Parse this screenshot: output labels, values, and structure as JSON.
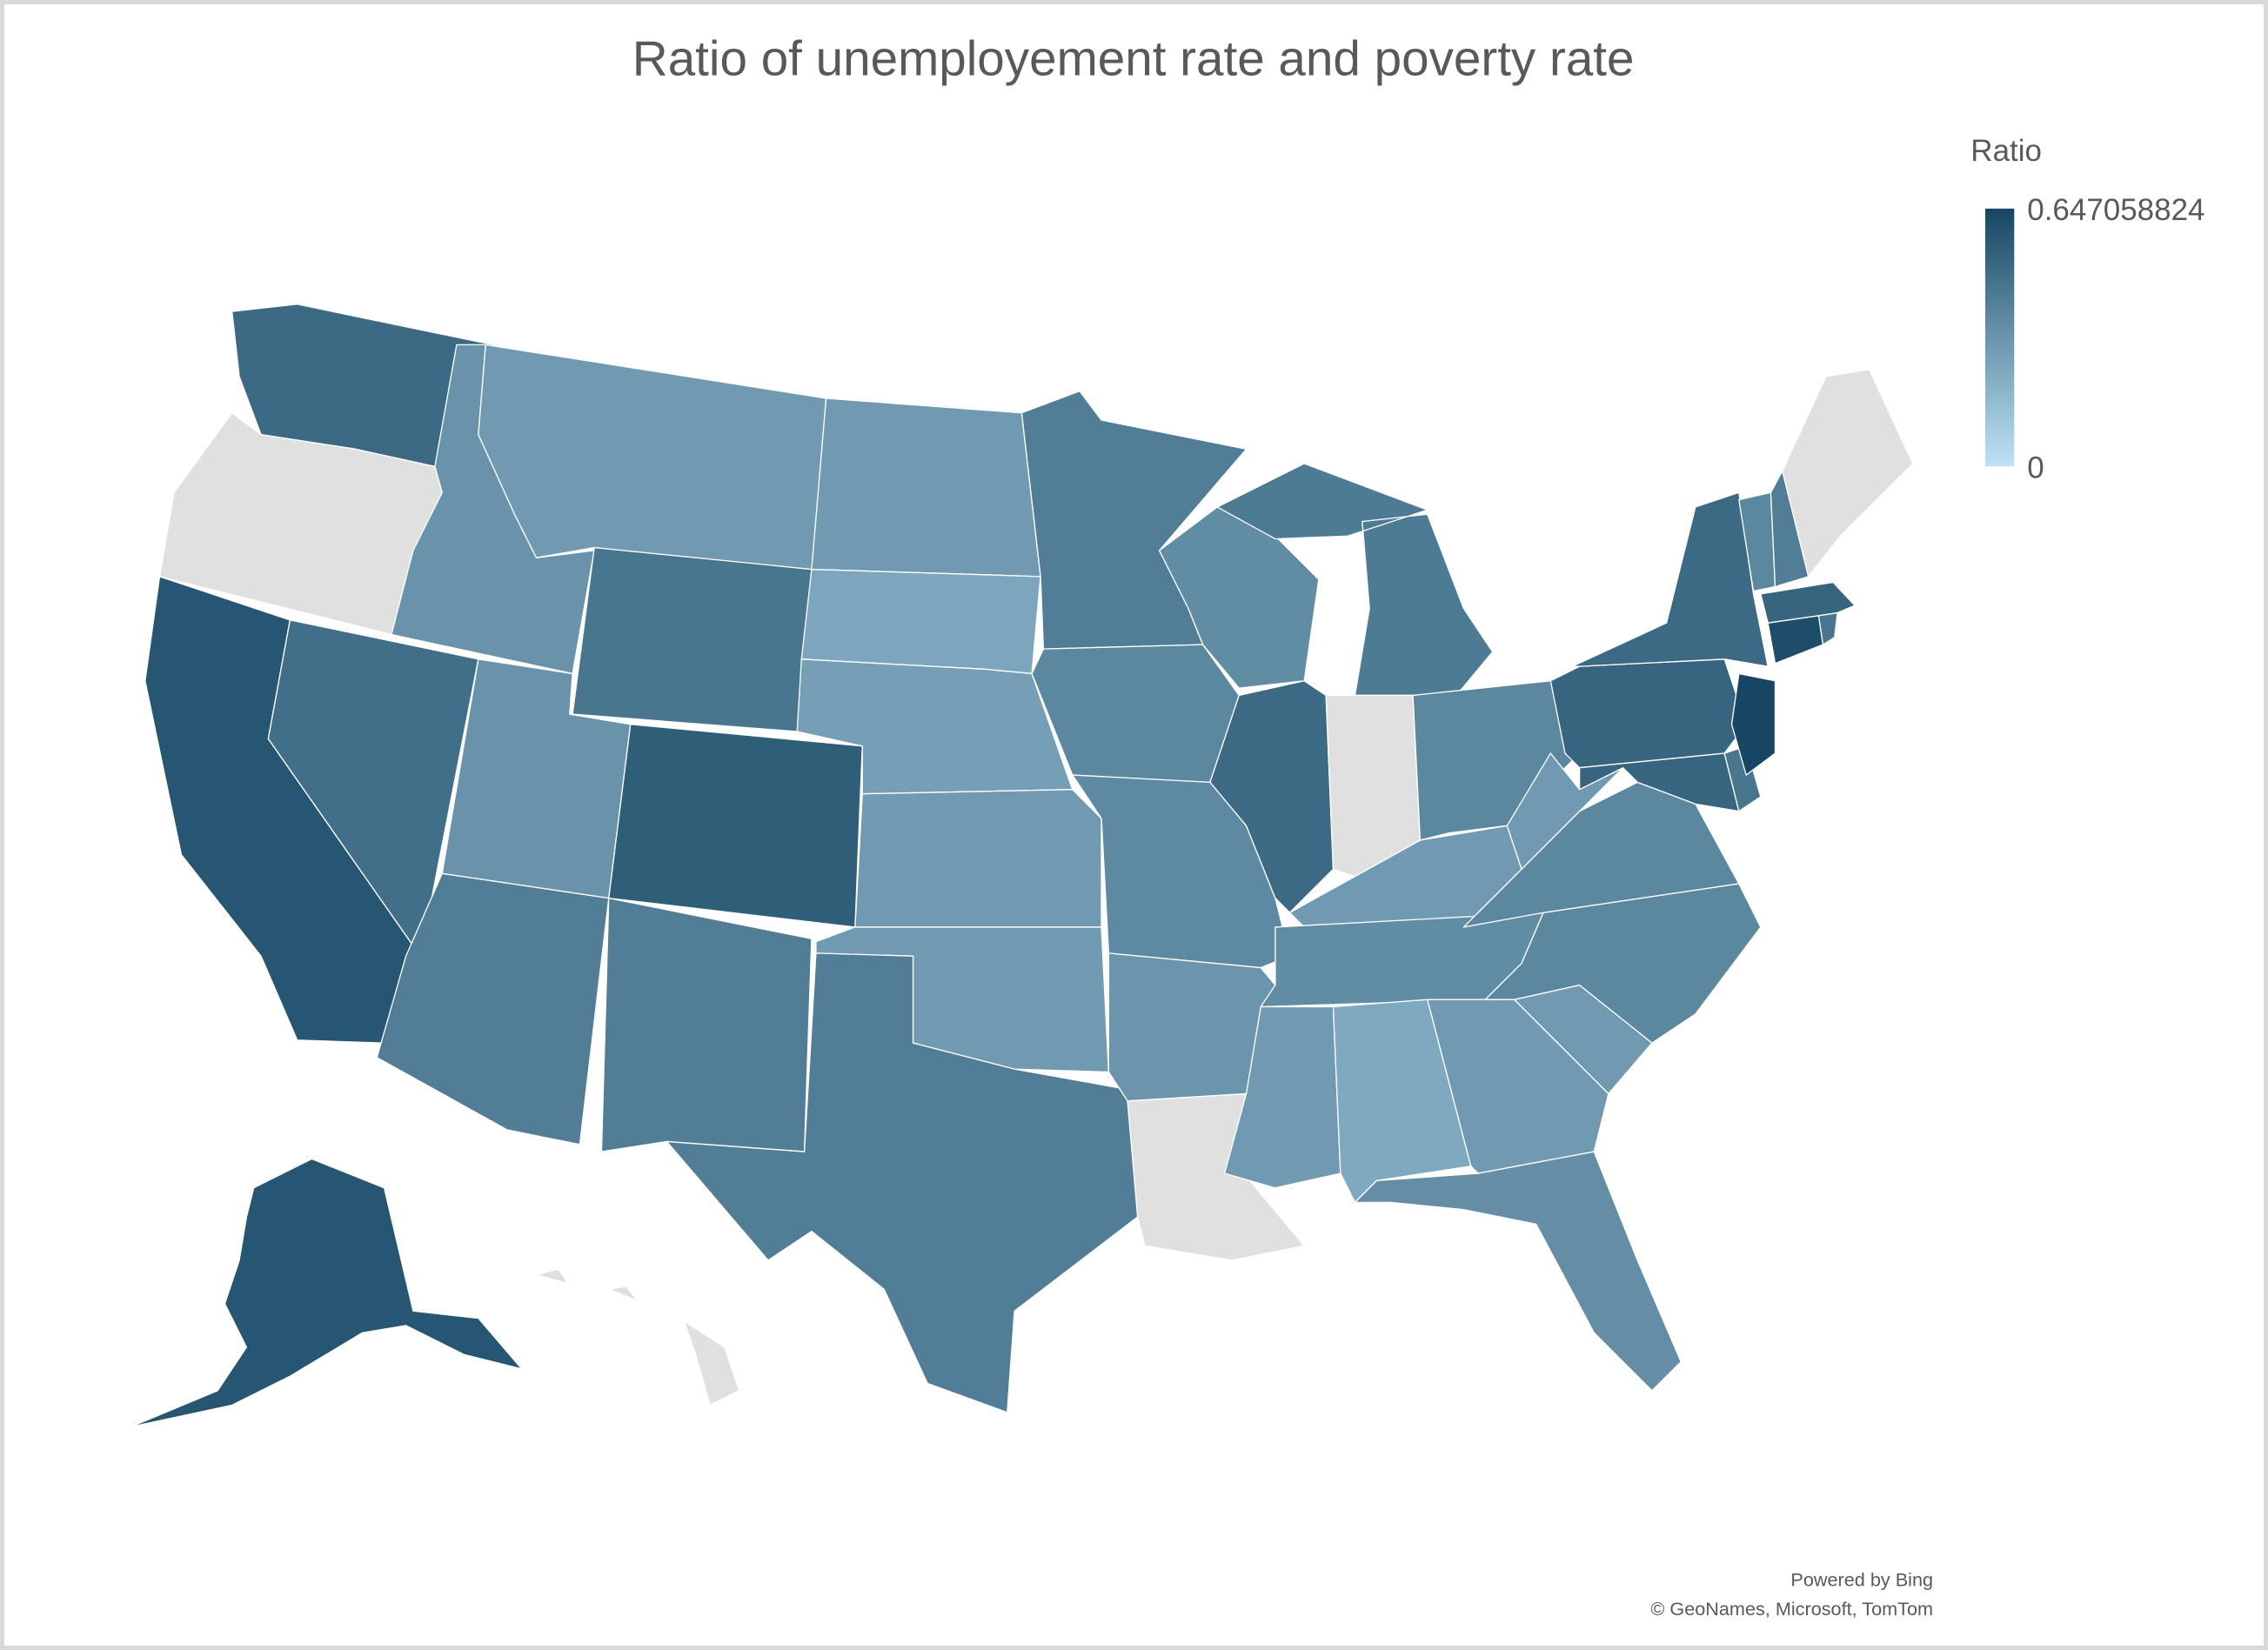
{
  "chart_data": {
    "type": "choropleth",
    "title": "Ratio of unemployement rate and poverty rate",
    "legend": {
      "title": "Ratio",
      "max_label": "0.647058824",
      "min_label": "0",
      "min": 0,
      "max": 0.647058824,
      "placement": "top-right"
    },
    "colors": {
      "low": "#bde3f5",
      "high": "#164663",
      "no_data": "#e0e0e0"
    },
    "values": {
      "WA": 0.5,
      "OR": null,
      "CA": 0.58,
      "NV": 0.48,
      "ID": 0.33,
      "MT": 0.3,
      "WY": 0.45,
      "UT": 0.33,
      "CO": 0.55,
      "AZ": 0.42,
      "NM": 0.42,
      "ND": 0.3,
      "SD": 0.25,
      "NE": 0.28,
      "KS": 0.3,
      "OK": 0.3,
      "TX": 0.42,
      "MN": 0.42,
      "IA": 0.38,
      "MO": 0.37,
      "AR": 0.32,
      "LA": null,
      "WI": 0.36,
      "IL": 0.5,
      "MI": 0.43,
      "IN": null,
      "OH": 0.38,
      "KY": 0.3,
      "TN": 0.36,
      "MS": 0.3,
      "AL": 0.24,
      "GA": 0.3,
      "FL": 0.35,
      "SC": 0.3,
      "NC": 0.38,
      "VA": 0.38,
      "WV": 0.3,
      "PA": 0.52,
      "NY": 0.5,
      "MD": 0.52,
      "DE": 0.45,
      "NJ": 0.647058824,
      "CT": 0.62,
      "RI": 0.45,
      "MA": 0.52,
      "VT": 0.38,
      "NH": 0.42,
      "ME": null,
      "AK": 0.58,
      "HI": null
    }
  },
  "attribution": {
    "line1": "Powered by Bing",
    "line2": "© GeoNames, Microsoft, TomTom"
  }
}
